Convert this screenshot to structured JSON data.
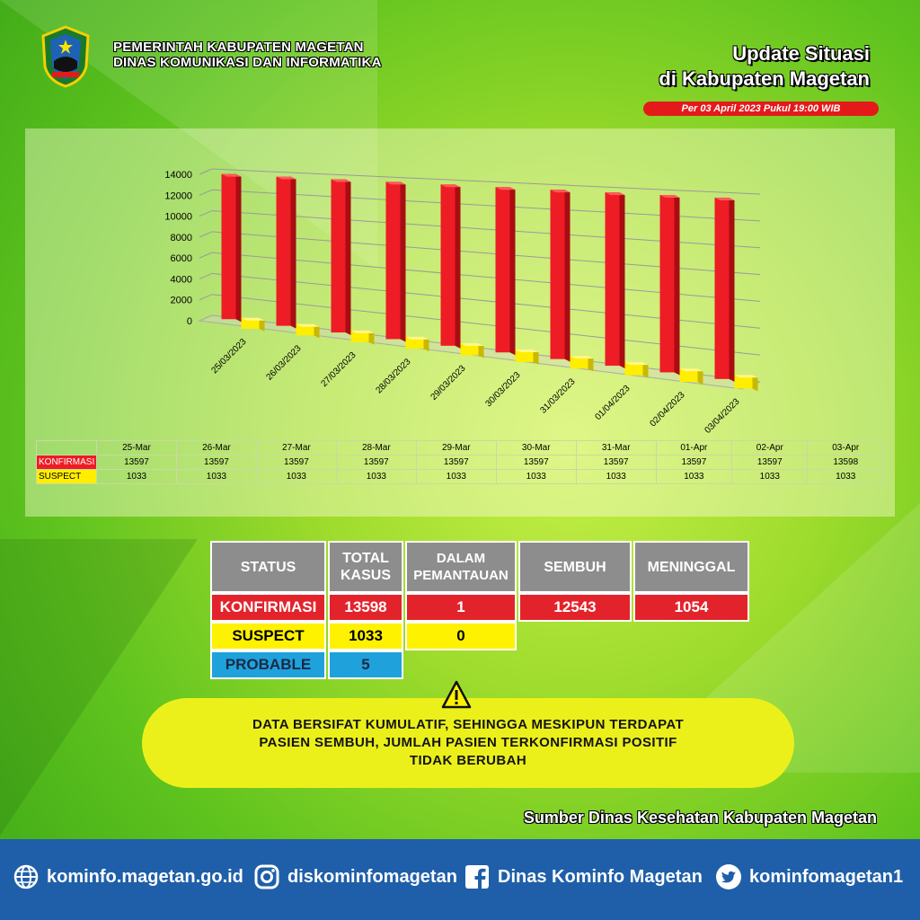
{
  "header": {
    "org_line1": "PEMERINTAH KABUPATEN MAGETAN",
    "org_line2": "DINAS KOMUNIKASI DAN INFORMATIKA",
    "update_line1": "Update Situasi",
    "update_line2": "di Kabupaten Magetan",
    "date_label": "Per 03 April 2023 Pukul 19:00 WIB"
  },
  "chart_data": {
    "type": "bar",
    "categories": [
      "25/03/2023",
      "26/03/2023",
      "27/03/2023",
      "28/03/2023",
      "29/03/2023",
      "30/03/2023",
      "31/03/2023",
      "01/04/2023",
      "02/04/2023",
      "03/04/2023"
    ],
    "series": [
      {
        "name": "KONFIRMASI",
        "color": "#ee1c24",
        "values": [
          13597,
          13597,
          13597,
          13597,
          13597,
          13597,
          13597,
          13597,
          13597,
          13598
        ]
      },
      {
        "name": "SUSPECT",
        "color": "#ffee00",
        "values": [
          1033,
          1033,
          1033,
          1033,
          1033,
          1033,
          1033,
          1033,
          1033,
          1033
        ]
      }
    ],
    "yticks": [
      "0",
      "2000",
      "4000",
      "6000",
      "8000",
      "10000",
      "12000",
      "14000"
    ],
    "ylim": [
      0,
      14000
    ],
    "grid": true,
    "table_headers": [
      "25-Mar",
      "26-Mar",
      "27-Mar",
      "28-Mar",
      "29-Mar",
      "30-Mar",
      "31-Mar",
      "01-Apr",
      "02-Apr",
      "03-Apr"
    ]
  },
  "status": {
    "headers": [
      "STATUS",
      "TOTAL KASUS",
      "DALAM PEMANTAUAN",
      "SEMBUH",
      "MENINGGAL"
    ],
    "konfirmasi": {
      "label": "KONFIRMASI",
      "total": "13598",
      "pemantauan": "1",
      "sembuh": "12543",
      "meninggal": "1054"
    },
    "suspect": {
      "label": "SUSPECT",
      "total": "1033",
      "pemantauan": "0"
    },
    "probable": {
      "label": "PROBABLE",
      "total": "5"
    }
  },
  "notice": {
    "line1": "DATA BERSIFAT KUMULATIF, SEHINGGA MESKIPUN TERDAPAT",
    "line2": "PASIEN SEMBUH, JUMLAH PASIEN TERKONFIRMASI POSITIF",
    "line3": "TIDAK BERUBAH"
  },
  "source": "Sumber Dinas Kesehatan Kabupaten Magetan",
  "footer": {
    "website": "kominfo.magetan.go.id",
    "instagram": "diskominfomagetan",
    "facebook": "Dinas Kominfo Magetan",
    "twitter": "kominfomagetan1"
  }
}
